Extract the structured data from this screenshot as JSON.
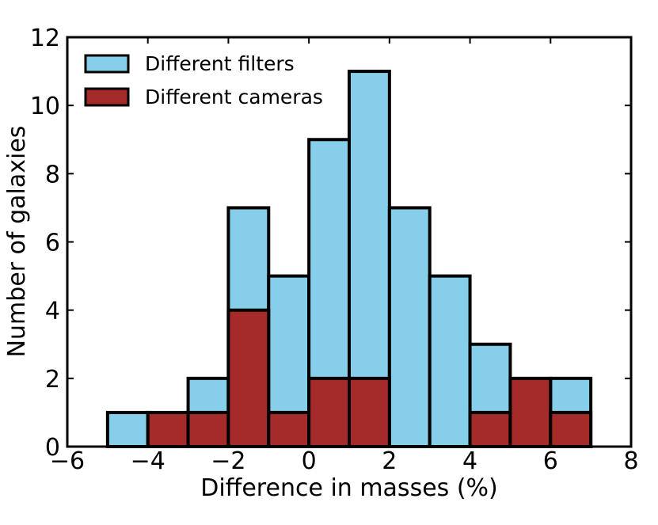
{
  "chart_data": {
    "type": "bar",
    "title": "",
    "xlabel": "Difference in masses (%)",
    "ylabel": "Number of galaxies",
    "xlim": [
      -6,
      8
    ],
    "ylim": [
      0,
      12
    ],
    "x_ticks": [
      -6,
      -4,
      -2,
      0,
      2,
      4,
      6,
      8
    ],
    "x_tick_labels": [
      "−6",
      "−4",
      "−2",
      "0",
      "2",
      "4",
      "6",
      "8"
    ],
    "y_ticks": [
      0,
      2,
      4,
      6,
      8,
      10,
      12
    ],
    "y_tick_labels": [
      "0",
      "2",
      "4",
      "6",
      "8",
      "10",
      "12"
    ],
    "grid": false,
    "legend_position": "upper-left",
    "bin_edges": [
      -5,
      -4,
      -3,
      -2,
      -1,
      0,
      1,
      2,
      3,
      4,
      5,
      6,
      7
    ],
    "series": [
      {
        "name": "Different filters",
        "color": "#87ceeb",
        "values": [
          1,
          0,
          2,
          7,
          5,
          9,
          11,
          7,
          5,
          3,
          0,
          2
        ]
      },
      {
        "name": "Different cameras",
        "color": "#a52a2a",
        "values": [
          0,
          1,
          1,
          4,
          1,
          2,
          2,
          0,
          0,
          1,
          2,
          1
        ]
      }
    ]
  }
}
